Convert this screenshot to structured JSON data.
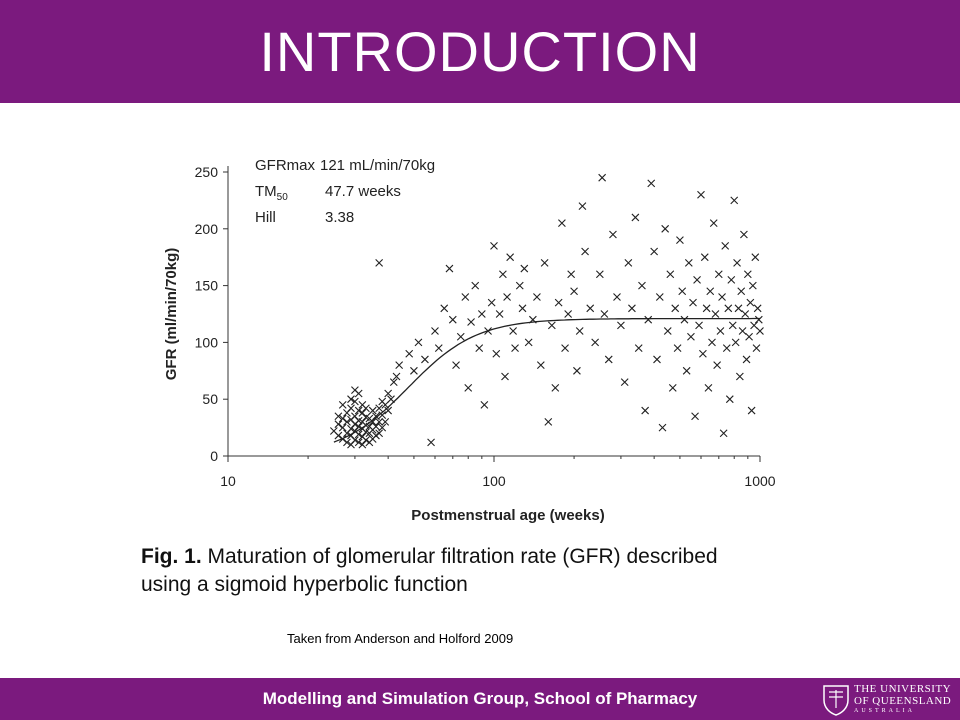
{
  "slide": {
    "title": "INTRODUCTION",
    "footer": "Modelling and Simulation Group, School of Pharmacy",
    "credit": "Taken from Anderson and Holford 2009",
    "caption_prefix": "Fig. 1.",
    "caption_line1": "Maturation of glomerular filtration rate (GFR) described",
    "caption_line2": "using a sigmoid hyperbolic function",
    "logo": {
      "line1": "THE UNIVERSITY",
      "line2": "OF QUEENSLAND",
      "line3": "AUSTRALIA",
      "icon": "university-crest-icon"
    },
    "colors": {
      "band": "#7b1a7e",
      "text_on_band": "#ffffff"
    }
  },
  "chart_data": {
    "type": "scatter",
    "title": "",
    "xlabel": "Postmenstrual age (weeks)",
    "ylabel": "GFR (ml/min/70kg)",
    "x_scale": "log",
    "xlim": [
      10,
      1000
    ],
    "ylim": [
      0,
      250
    ],
    "x_ticks": [
      10,
      100,
      1000
    ],
    "y_ticks": [
      0,
      50,
      100,
      150,
      200,
      250
    ],
    "grid": false,
    "marker": "x",
    "annotations": [
      {
        "label": "GFRmax",
        "value": "121 mL/min/70kg"
      },
      {
        "label": "TM",
        "subscript": "50",
        "value": "47.7 weeks"
      },
      {
        "label": "Hill",
        "value": "3.38"
      }
    ],
    "model": {
      "type": "sigmoid hyperbolic",
      "gfrmax": 121,
      "tm50": 47.7,
      "hill": 3.38
    },
    "points": [
      [
        25,
        22
      ],
      [
        26,
        18
      ],
      [
        26,
        28
      ],
      [
        27,
        15
      ],
      [
        27,
        25
      ],
      [
        27,
        33
      ],
      [
        28,
        12
      ],
      [
        28,
        20
      ],
      [
        28,
        30
      ],
      [
        28,
        38
      ],
      [
        29,
        10
      ],
      [
        29,
        18
      ],
      [
        29,
        24
      ],
      [
        29,
        32
      ],
      [
        29,
        42
      ],
      [
        30,
        14
      ],
      [
        30,
        22
      ],
      [
        30,
        28
      ],
      [
        30,
        35
      ],
      [
        30,
        48
      ],
      [
        31,
        12
      ],
      [
        31,
        19
      ],
      [
        31,
        26
      ],
      [
        31,
        31
      ],
      [
        31,
        40
      ],
      [
        31,
        55
      ],
      [
        32,
        10
      ],
      [
        32,
        17
      ],
      [
        32,
        24
      ],
      [
        32,
        30
      ],
      [
        32,
        38
      ],
      [
        32,
        45
      ],
      [
        33,
        14
      ],
      [
        33,
        21
      ],
      [
        33,
        27
      ],
      [
        33,
        34
      ],
      [
        33,
        42
      ],
      [
        34,
        12
      ],
      [
        34,
        20
      ],
      [
        34,
        26
      ],
      [
        34,
        33
      ],
      [
        35,
        15
      ],
      [
        35,
        23
      ],
      [
        35,
        30
      ],
      [
        35,
        40
      ],
      [
        36,
        18
      ],
      [
        36,
        26
      ],
      [
        36,
        35
      ],
      [
        37,
        20
      ],
      [
        37,
        30
      ],
      [
        37,
        42
      ],
      [
        38,
        25
      ],
      [
        38,
        36
      ],
      [
        38,
        48
      ],
      [
        39,
        30
      ],
      [
        39,
        45
      ],
      [
        40,
        40
      ],
      [
        40,
        55
      ],
      [
        41,
        50
      ],
      [
        42,
        65
      ],
      [
        43,
        70
      ],
      [
        44,
        80
      ],
      [
        37,
        170
      ],
      [
        30,
        58
      ],
      [
        29,
        50
      ],
      [
        27,
        45
      ],
      [
        26,
        35
      ],
      [
        48,
        90
      ],
      [
        50,
        75
      ],
      [
        52,
        100
      ],
      [
        55,
        85
      ],
      [
        58,
        12
      ],
      [
        60,
        110
      ],
      [
        62,
        95
      ],
      [
        65,
        130
      ],
      [
        68,
        165
      ],
      [
        70,
        120
      ],
      [
        72,
        80
      ],
      [
        75,
        105
      ],
      [
        78,
        140
      ],
      [
        80,
        60
      ],
      [
        82,
        118
      ],
      [
        85,
        150
      ],
      [
        88,
        95
      ],
      [
        90,
        125
      ],
      [
        92,
        45
      ],
      [
        95,
        110
      ],
      [
        98,
        135
      ],
      [
        100,
        185
      ],
      [
        102,
        90
      ],
      [
        105,
        125
      ],
      [
        108,
        160
      ],
      [
        110,
        70
      ],
      [
        112,
        140
      ],
      [
        115,
        175
      ],
      [
        118,
        110
      ],
      [
        120,
        95
      ],
      [
        125,
        150
      ],
      [
        128,
        130
      ],
      [
        130,
        165
      ],
      [
        135,
        100
      ],
      [
        140,
        120
      ],
      [
        145,
        140
      ],
      [
        150,
        80
      ],
      [
        155,
        170
      ],
      [
        160,
        30
      ],
      [
        165,
        115
      ],
      [
        170,
        60
      ],
      [
        175,
        135
      ],
      [
        180,
        205
      ],
      [
        185,
        95
      ],
      [
        190,
        125
      ],
      [
        195,
        160
      ],
      [
        200,
        145
      ],
      [
        205,
        75
      ],
      [
        210,
        110
      ],
      [
        215,
        220
      ],
      [
        220,
        180
      ],
      [
        230,
        130
      ],
      [
        240,
        100
      ],
      [
        250,
        160
      ],
      [
        255,
        245
      ],
      [
        260,
        125
      ],
      [
        270,
        85
      ],
      [
        280,
        195
      ],
      [
        290,
        140
      ],
      [
        300,
        115
      ],
      [
        310,
        65
      ],
      [
        320,
        170
      ],
      [
        330,
        130
      ],
      [
        340,
        210
      ],
      [
        350,
        95
      ],
      [
        360,
        150
      ],
      [
        370,
        40
      ],
      [
        380,
        120
      ],
      [
        390,
        240
      ],
      [
        400,
        180
      ],
      [
        410,
        85
      ],
      [
        420,
        140
      ],
      [
        430,
        25
      ],
      [
        440,
        200
      ],
      [
        450,
        110
      ],
      [
        460,
        160
      ],
      [
        470,
        60
      ],
      [
        480,
        130
      ],
      [
        490,
        95
      ],
      [
        500,
        190
      ],
      [
        510,
        145
      ],
      [
        520,
        120
      ],
      [
        530,
        75
      ],
      [
        540,
        170
      ],
      [
        550,
        105
      ],
      [
        560,
        135
      ],
      [
        570,
        35
      ],
      [
        580,
        155
      ],
      [
        590,
        115
      ],
      [
        600,
        230
      ],
      [
        610,
        90
      ],
      [
        620,
        175
      ],
      [
        630,
        130
      ],
      [
        640,
        60
      ],
      [
        650,
        145
      ],
      [
        660,
        100
      ],
      [
        670,
        205
      ],
      [
        680,
        125
      ],
      [
        690,
        80
      ],
      [
        700,
        160
      ],
      [
        710,
        110
      ],
      [
        720,
        140
      ],
      [
        730,
        20
      ],
      [
        740,
        185
      ],
      [
        750,
        95
      ],
      [
        760,
        130
      ],
      [
        770,
        50
      ],
      [
        780,
        155
      ],
      [
        790,
        115
      ],
      [
        800,
        225
      ],
      [
        810,
        100
      ],
      [
        820,
        170
      ],
      [
        830,
        130
      ],
      [
        840,
        70
      ],
      [
        850,
        145
      ],
      [
        860,
        110
      ],
      [
        870,
        195
      ],
      [
        880,
        125
      ],
      [
        890,
        85
      ],
      [
        900,
        160
      ],
      [
        910,
        105
      ],
      [
        920,
        135
      ],
      [
        930,
        40
      ],
      [
        940,
        150
      ],
      [
        950,
        115
      ],
      [
        960,
        175
      ],
      [
        970,
        95
      ],
      [
        980,
        130
      ],
      [
        990,
        120
      ],
      [
        1000,
        110
      ]
    ]
  }
}
